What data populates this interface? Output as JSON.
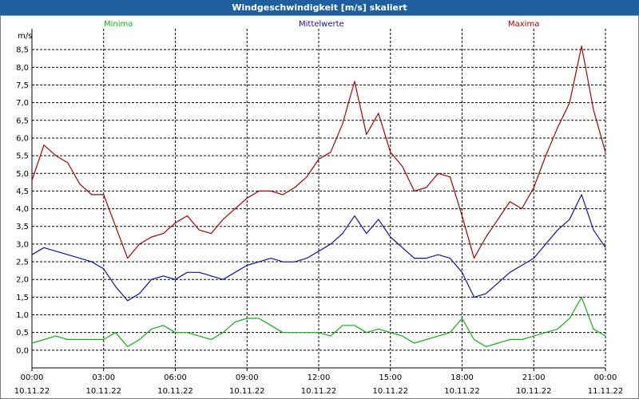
{
  "window": {
    "title": "Windgeschwindigkeit [m/s] skaliert"
  },
  "legend": {
    "min_label": "Minima",
    "mean_label": "Mittelwerte",
    "max_label": "Maxima"
  },
  "colors": {
    "min": "#10b010",
    "mean": "#1010a8",
    "max": "#a80000",
    "grid": "#000000",
    "title_bg": "#1f5f9f"
  },
  "chart_data": {
    "type": "line",
    "ylabel": "m/s",
    "ylim": [
      -0.5,
      9.0
    ],
    "y_ticks": [
      "0,0",
      "0,5",
      "1,0",
      "1,5",
      "2,0",
      "2,5",
      "3,0",
      "3,5",
      "4,0",
      "4,5",
      "5,0",
      "5,5",
      "6,0",
      "6,5",
      "7,0",
      "7,5",
      "8,0",
      "8,5"
    ],
    "x_ticks": [
      {
        "time": "00:00",
        "date": "10.11.22"
      },
      {
        "time": "03:00",
        "date": "10.11.22"
      },
      {
        "time": "06:00",
        "date": "10.11.22"
      },
      {
        "time": "09:00",
        "date": "10.11.22"
      },
      {
        "time": "12:00",
        "date": "10.11.22"
      },
      {
        "time": "15:00",
        "date": "10.11.22"
      },
      {
        "time": "18:00",
        "date": "10.11.22"
      },
      {
        "time": "21:00",
        "date": "10.11.22"
      },
      {
        "time": "00:00",
        "date": "11.11.22"
      }
    ],
    "x_hours": [
      0,
      0.5,
      1,
      1.5,
      2,
      2.5,
      3,
      3.5,
      4,
      4.5,
      5,
      5.5,
      6,
      6.5,
      7,
      7.5,
      8,
      8.5,
      9,
      9.5,
      10,
      10.5,
      11,
      11.5,
      12,
      12.5,
      13,
      13.5,
      14,
      14.5,
      15,
      15.5,
      16,
      16.5,
      17,
      17.5,
      18,
      18.5,
      19,
      19.5,
      20,
      20.5,
      21,
      21.5,
      22,
      22.5,
      23,
      23.5,
      24
    ],
    "series": [
      {
        "name": "Maxima",
        "values": [
          4.8,
          5.8,
          5.5,
          5.3,
          4.7,
          4.4,
          4.4,
          3.5,
          2.6,
          3.0,
          3.2,
          3.3,
          3.6,
          3.8,
          3.4,
          3.3,
          3.7,
          4.0,
          4.3,
          4.5,
          4.5,
          4.4,
          4.6,
          4.9,
          5.4,
          5.6,
          6.4,
          7.6,
          6.1,
          6.7,
          5.6,
          5.2,
          4.5,
          4.6,
          5.0,
          4.9,
          3.8,
          2.6,
          3.2,
          3.7,
          4.2,
          4.0,
          4.6,
          5.5,
          6.3,
          7.0,
          8.6,
          6.8,
          5.6
        ]
      },
      {
        "name": "Mittelwerte",
        "values": [
          2.7,
          2.9,
          2.8,
          2.7,
          2.6,
          2.5,
          2.3,
          1.8,
          1.4,
          1.6,
          2.0,
          2.1,
          2.0,
          2.2,
          2.2,
          2.1,
          2.0,
          2.2,
          2.4,
          2.5,
          2.6,
          2.5,
          2.5,
          2.6,
          2.8,
          3.0,
          3.3,
          3.8,
          3.3,
          3.7,
          3.2,
          2.9,
          2.6,
          2.6,
          2.7,
          2.6,
          2.2,
          1.5,
          1.6,
          1.9,
          2.2,
          2.4,
          2.6,
          3.0,
          3.4,
          3.7,
          4.4,
          3.4,
          2.9
        ]
      },
      {
        "name": "Minima",
        "values": [
          0.2,
          0.3,
          0.4,
          0.3,
          0.3,
          0.3,
          0.3,
          0.5,
          0.1,
          0.3,
          0.6,
          0.7,
          0.5,
          0.5,
          0.4,
          0.3,
          0.5,
          0.8,
          0.9,
          0.9,
          0.7,
          0.5,
          0.5,
          0.5,
          0.5,
          0.4,
          0.7,
          0.7,
          0.5,
          0.6,
          0.5,
          0.4,
          0.2,
          0.3,
          0.4,
          0.5,
          0.9,
          0.3,
          0.1,
          0.2,
          0.3,
          0.3,
          0.4,
          0.5,
          0.6,
          0.9,
          1.5,
          0.6,
          0.4
        ]
      }
    ],
    "grid": true,
    "legend_position": "top"
  }
}
